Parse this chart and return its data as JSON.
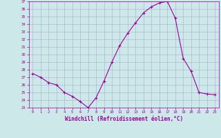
{
  "x": [
    0,
    1,
    2,
    3,
    4,
    5,
    6,
    7,
    8,
    9,
    10,
    11,
    12,
    13,
    14,
    15,
    16,
    17,
    18,
    19,
    20,
    21,
    22,
    23
  ],
  "y": [
    27.5,
    27.0,
    26.3,
    26.0,
    25.0,
    24.5,
    23.8,
    23.0,
    24.3,
    26.5,
    29.0,
    31.2,
    32.8,
    34.2,
    35.5,
    36.3,
    36.8,
    37.0,
    34.8,
    29.5,
    27.8,
    25.0,
    24.8,
    24.7
  ],
  "line_color": "#990099",
  "marker": "+",
  "bg_color": "#cce8e8",
  "grid_color": "#aaaacc",
  "xlabel": "Windchill (Refroidissement éolien,°C)",
  "xlabel_color": "#990099",
  "tick_color": "#990099",
  "ylim": [
    23,
    37
  ],
  "xlim": [
    -0.5,
    23.5
  ],
  "yticks": [
    23,
    24,
    25,
    26,
    27,
    28,
    29,
    30,
    31,
    32,
    33,
    34,
    35,
    36,
    37
  ],
  "xticks": [
    0,
    1,
    2,
    3,
    4,
    5,
    6,
    7,
    8,
    9,
    10,
    11,
    12,
    13,
    14,
    15,
    16,
    17,
    18,
    19,
    20,
    21,
    22,
    23
  ],
  "figsize": [
    3.2,
    2.0
  ],
  "dpi": 100
}
